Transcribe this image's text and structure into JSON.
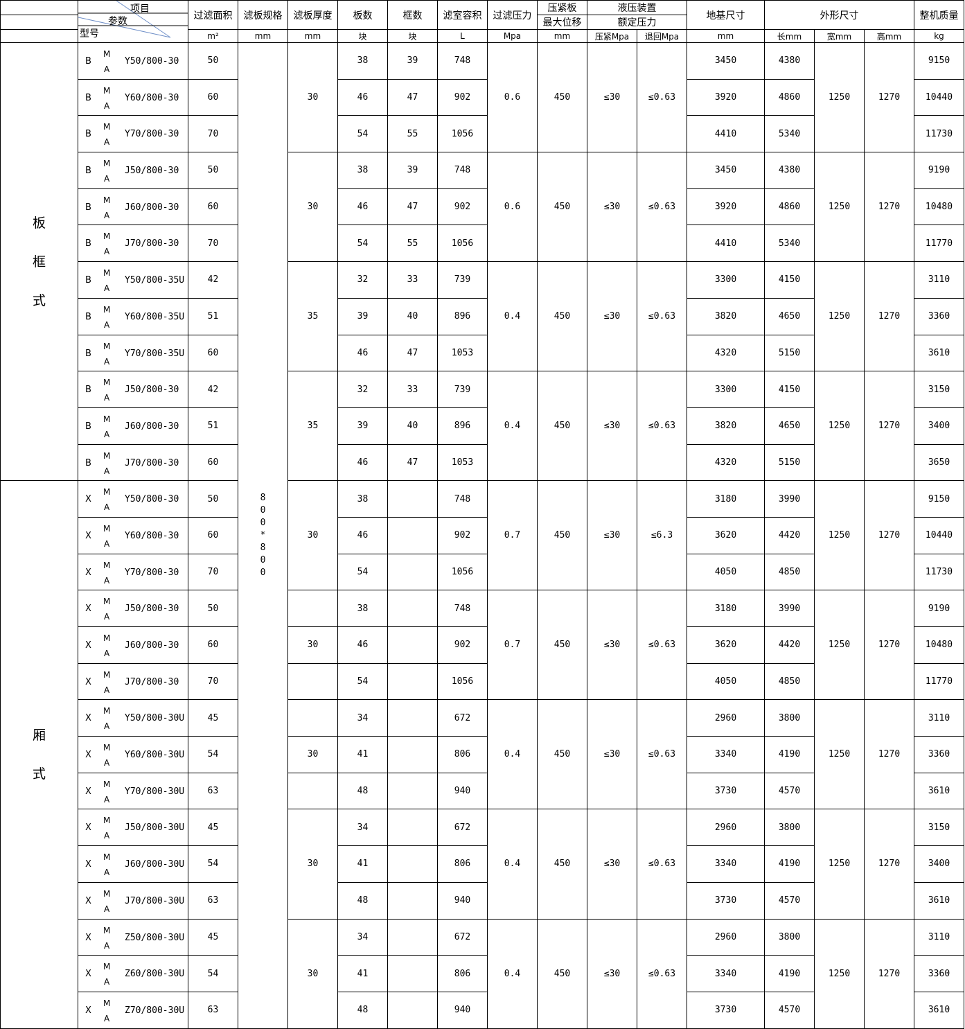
{
  "header": {
    "item": "项目",
    "param": "参数",
    "model": "型号",
    "area": "过滤面积",
    "spec": "滤板规格",
    "thickness": "滤板厚度",
    "plates": "板数",
    "frames": "框数",
    "volume": "滤室容积",
    "pressure": "过滤压力",
    "press_plate": "压紧板",
    "max_disp": "最大位移",
    "hydraulic": "液压装置",
    "rated": "额定压力",
    "foundation": "地基尺寸",
    "outline": "外形尺寸",
    "weight": "整机质量"
  },
  "units": {
    "area": "m²",
    "spec": "mm",
    "thickness": "mm",
    "plates": "块",
    "frames": "块",
    "volume": "L",
    "pressure": "Mpa",
    "disp": "mm",
    "press": "压紧Mpa",
    "ret": "退回Mpa",
    "foundation": "mm",
    "length": "长mm",
    "width": "宽mm",
    "height": "高mm",
    "weight": "kg"
  },
  "categories": [
    {
      "label": "板框式",
      "rows": 12
    },
    {
      "label": "厢式",
      "rows": 15
    }
  ],
  "spec_value": "800*800",
  "groups": [
    {
      "thickness": "30",
      "merged": true,
      "pressure": "0.6",
      "disp": "450",
      "press": "≤30",
      "ret": "≤0.63",
      "width": "1250",
      "height": "1270",
      "rows": [
        {
          "pre": "B",
          "code": "Y50/800-30",
          "area": "50",
          "plates": "38",
          "frames": "39",
          "volume": "748",
          "foundation": "3450",
          "length": "4380",
          "weight": "9150"
        },
        {
          "pre": "B",
          "code": "Y60/800-30",
          "area": "60",
          "plates": "46",
          "frames": "47",
          "volume": "902",
          "foundation": "3920",
          "length": "4860",
          "weight": "10440"
        },
        {
          "pre": "B",
          "code": "Y70/800-30",
          "area": "70",
          "plates": "54",
          "frames": "55",
          "volume": "1056",
          "foundation": "4410",
          "length": "5340",
          "weight": "11730"
        }
      ]
    },
    {
      "thickness": "30",
      "merged": true,
      "pressure": "0.6",
      "disp": "450",
      "press": "≤30",
      "ret": "≤0.63",
      "width": "1250",
      "height": "1270",
      "rows": [
        {
          "pre": "B",
          "code": "J50/800-30",
          "area": "50",
          "plates": "38",
          "frames": "39",
          "volume": "748",
          "foundation": "3450",
          "length": "4380",
          "weight": "9190"
        },
        {
          "pre": "B",
          "code": "J60/800-30",
          "area": "60",
          "plates": "46",
          "frames": "47",
          "volume": "902",
          "foundation": "3920",
          "length": "4860",
          "weight": "10480"
        },
        {
          "pre": "B",
          "code": "J70/800-30",
          "area": "70",
          "plates": "54",
          "frames": "55",
          "volume": "1056",
          "foundation": "4410",
          "length": "5340",
          "weight": "11770"
        }
      ]
    },
    {
      "thickness": "35",
      "merged": true,
      "pressure": "0.4",
      "disp": "450",
      "press": "≤30",
      "ret": "≤0.63",
      "width": "1250",
      "height": "1270",
      "rows": [
        {
          "pre": "B",
          "code": "Y50/800-35U",
          "area": "42",
          "plates": "32",
          "frames": "33",
          "volume": "739",
          "foundation": "3300",
          "length": "4150",
          "weight": "3110"
        },
        {
          "pre": "B",
          "code": "Y60/800-35U",
          "area": "51",
          "plates": "39",
          "frames": "40",
          "volume": "896",
          "foundation": "3820",
          "length": "4650",
          "weight": "3360"
        },
        {
          "pre": "B",
          "code": "Y70/800-35U",
          "area": "60",
          "plates": "46",
          "frames": "47",
          "volume": "1053",
          "foundation": "4320",
          "length": "5150",
          "weight": "3610"
        }
      ]
    },
    {
      "thickness": "35",
      "merged": true,
      "pressure": "0.4",
      "disp": "450",
      "press": "≤30",
      "ret": "≤0.63",
      "width": "1250",
      "height": "1270",
      "rows": [
        {
          "pre": "B",
          "code": "J50/800-30",
          "area": "42",
          "plates": "32",
          "frames": "33",
          "volume": "739",
          "foundation": "3300",
          "length": "4150",
          "weight": "3150"
        },
        {
          "pre": "B",
          "code": "J60/800-30",
          "area": "51",
          "plates": "39",
          "frames": "40",
          "volume": "896",
          "foundation": "3820",
          "length": "4650",
          "weight": "3400"
        },
        {
          "pre": "B",
          "code": "J70/800-30",
          "area": "60",
          "plates": "46",
          "frames": "47",
          "volume": "1053",
          "foundation": "4320",
          "length": "5150",
          "weight": "3650"
        }
      ]
    },
    {
      "thickness": "30",
      "merged": true,
      "pressure": "0.7",
      "disp": "450",
      "press": "≤30",
      "ret": "≤6.3",
      "width": "1250",
      "height": "1270",
      "rows": [
        {
          "pre": "X",
          "code": "Y50/800-30",
          "area": "50",
          "plates": "38",
          "frames": "",
          "volume": "748",
          "foundation": "3180",
          "length": "3990",
          "weight": "9150"
        },
        {
          "pre": "X",
          "code": "Y60/800-30",
          "area": "60",
          "plates": "46",
          "frames": "",
          "volume": "902",
          "foundation": "3620",
          "length": "4420",
          "weight": "10440"
        },
        {
          "pre": "X",
          "code": "Y70/800-30",
          "area": "70",
          "plates": "54",
          "frames": "",
          "volume": "1056",
          "foundation": "4050",
          "length": "4850",
          "weight": "11730"
        }
      ]
    },
    {
      "thickness": "30",
      "merged": false,
      "pressure": "0.7",
      "disp": "450",
      "press": "≤30",
      "ret": "≤0.63",
      "width": "1250",
      "height": "1270",
      "rows": [
        {
          "pre": "X",
          "code": "J50/800-30",
          "area": "50",
          "plates": "38",
          "frames": "",
          "volume": "748",
          "foundation": "3180",
          "length": "3990",
          "weight": "9190"
        },
        {
          "pre": "X",
          "code": "J60/800-30",
          "area": "60",
          "plates": "46",
          "frames": "",
          "volume": "902",
          "foundation": "3620",
          "length": "4420",
          "weight": "10480"
        },
        {
          "pre": "X",
          "code": "J70/800-30",
          "area": "70",
          "plates": "54",
          "frames": "",
          "volume": "1056",
          "foundation": "4050",
          "length": "4850",
          "weight": "11770"
        }
      ]
    },
    {
      "thickness": "30",
      "merged": false,
      "pressure": "0.4",
      "disp": "450",
      "press": "≤30",
      "ret": "≤0.63",
      "width": "1250",
      "height": "1270",
      "rows": [
        {
          "pre": "X",
          "code": "Y50/800-30U",
          "area": "45",
          "plates": "34",
          "frames": "",
          "volume": "672",
          "foundation": "2960",
          "length": "3800",
          "weight": "3110"
        },
        {
          "pre": "X",
          "code": "Y60/800-30U",
          "area": "54",
          "plates": "41",
          "frames": "",
          "volume": "806",
          "foundation": "3340",
          "length": "4190",
          "weight": "3360"
        },
        {
          "pre": "X",
          "code": "Y70/800-30U",
          "area": "63",
          "plates": "48",
          "frames": "",
          "volume": "940",
          "foundation": "3730",
          "length": "4570",
          "weight": "3610"
        }
      ]
    },
    {
      "thickness": "30",
      "merged": true,
      "pressure": "0.4",
      "disp": "450",
      "press": "≤30",
      "ret": "≤0.63",
      "width": "1250",
      "height": "1270",
      "rows": [
        {
          "pre": "X",
          "code": "J50/800-30U",
          "area": "45",
          "plates": "34",
          "frames": "",
          "volume": "672",
          "foundation": "2960",
          "length": "3800",
          "weight": "3150"
        },
        {
          "pre": "X",
          "code": "J60/800-30U",
          "area": "54",
          "plates": "41",
          "frames": "",
          "volume": "806",
          "foundation": "3340",
          "length": "4190",
          "weight": "3400"
        },
        {
          "pre": "X",
          "code": "J70/800-30U",
          "area": "63",
          "plates": "48",
          "frames": "",
          "volume": "940",
          "foundation": "3730",
          "length": "4570",
          "weight": "3610"
        }
      ]
    },
    {
      "thickness": "30",
      "merged": true,
      "pressure": "0.4",
      "disp": "450",
      "press": "≤30",
      "ret": "≤0.63",
      "width": "1250",
      "height": "1270",
      "rows": [
        {
          "pre": "X",
          "code": "Z50/800-30U",
          "area": "45",
          "plates": "34",
          "frames": "",
          "volume": "672",
          "foundation": "2960",
          "length": "3800",
          "weight": "3110"
        },
        {
          "pre": "X",
          "code": "Z60/800-30U",
          "area": "54",
          "plates": "41",
          "frames": "",
          "volume": "806",
          "foundation": "3340",
          "length": "4190",
          "weight": "3360"
        },
        {
          "pre": "X",
          "code": "Z70/800-30U",
          "area": "63",
          "plates": "48",
          "frames": "",
          "volume": "940",
          "foundation": "3730",
          "length": "4570",
          "weight": "3610"
        }
      ]
    }
  ],
  "model_mid": {
    "top": "M",
    "bottom": "A"
  }
}
